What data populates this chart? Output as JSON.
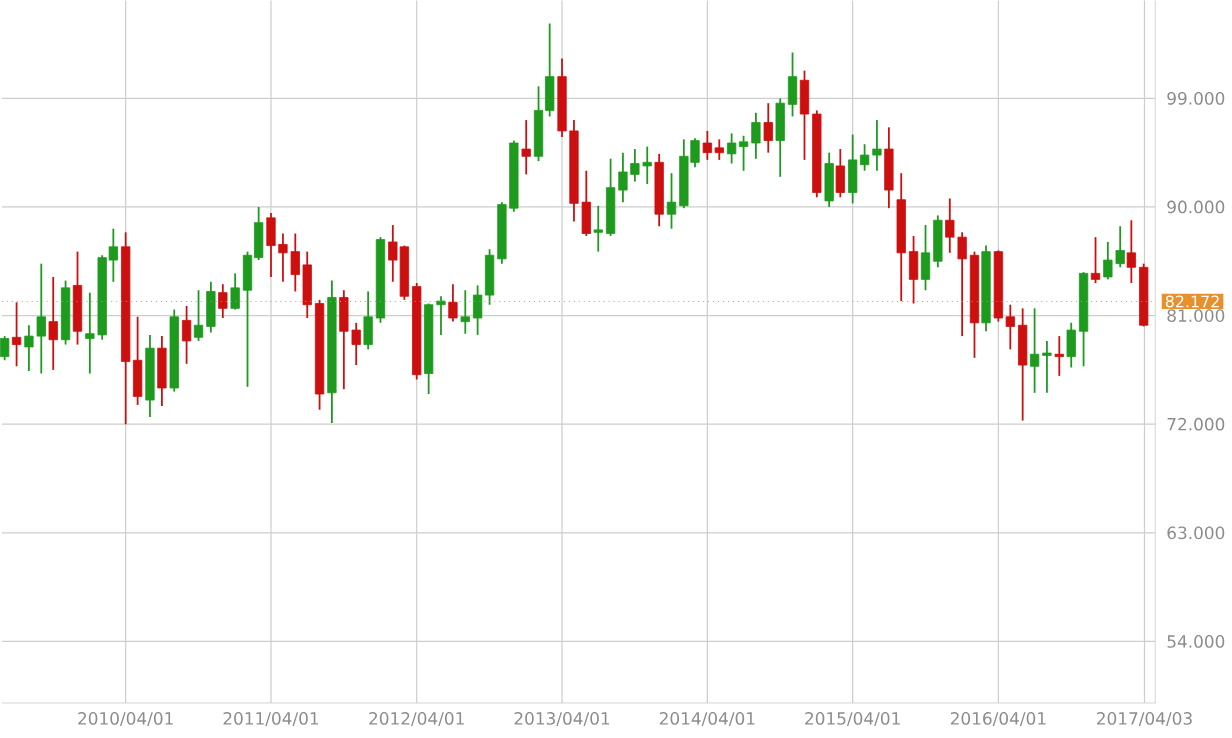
{
  "chart_data": {
    "type": "candlestick",
    "x": [
      "2009-06",
      "2009-07",
      "2009-08",
      "2009-09",
      "2009-10",
      "2009-11",
      "2009-12",
      "2010-01",
      "2010-02",
      "2010-03",
      "2010-04",
      "2010-05",
      "2010-06",
      "2010-07",
      "2010-08",
      "2010-09",
      "2010-10",
      "2010-11",
      "2010-12",
      "2011-01",
      "2011-02",
      "2011-03",
      "2011-04",
      "2011-05",
      "2011-06",
      "2011-07",
      "2011-08",
      "2011-09",
      "2011-10",
      "2011-11",
      "2011-12",
      "2012-01",
      "2012-02",
      "2012-03",
      "2012-04",
      "2012-05",
      "2012-06",
      "2012-07",
      "2012-08",
      "2012-09",
      "2012-10",
      "2012-11",
      "2012-12",
      "2013-01",
      "2013-02",
      "2013-03",
      "2013-04",
      "2013-05",
      "2013-06",
      "2013-07",
      "2013-08",
      "2013-09",
      "2013-10",
      "2013-11",
      "2013-12",
      "2014-01",
      "2014-02",
      "2014-03",
      "2014-04",
      "2014-05",
      "2014-06",
      "2014-07",
      "2014-08",
      "2014-09",
      "2014-10",
      "2014-11",
      "2014-12",
      "2015-01",
      "2015-02",
      "2015-03",
      "2015-04",
      "2015-05",
      "2015-06",
      "2015-07",
      "2015-08",
      "2015-09",
      "2015-10",
      "2015-11",
      "2015-12",
      "2016-01",
      "2016-02",
      "2016-03",
      "2016-04",
      "2016-05",
      "2016-06",
      "2016-07",
      "2016-08",
      "2016-09",
      "2016-10",
      "2016-11",
      "2016-12",
      "2017-01",
      "2017-02",
      "2017-03",
      "2017-04"
    ],
    "ohlc": [
      [
        77.6,
        79.3,
        77.3,
        79.1
      ],
      [
        79.2,
        82.1,
        76.8,
        78.6
      ],
      [
        78.4,
        80.2,
        76.4,
        79.3
      ],
      [
        79.3,
        85.3,
        76.2,
        80.9
      ],
      [
        80.5,
        84.2,
        76.5,
        79.0
      ],
      [
        79.0,
        83.9,
        78.6,
        83.3
      ],
      [
        83.5,
        86.3,
        78.6,
        79.7
      ],
      [
        79.1,
        82.9,
        76.2,
        79.5
      ],
      [
        79.4,
        86.0,
        79.0,
        85.8
      ],
      [
        85.6,
        88.2,
        83.8,
        86.7
      ],
      [
        86.7,
        87.9,
        72.0,
        77.2
      ],
      [
        77.3,
        80.9,
        73.6,
        74.3
      ],
      [
        74.0,
        79.4,
        72.6,
        78.3
      ],
      [
        78.3,
        79.3,
        73.5,
        75.0
      ],
      [
        75.0,
        81.5,
        74.7,
        80.9
      ],
      [
        80.6,
        81.8,
        77.0,
        78.9
      ],
      [
        79.2,
        83.1,
        78.9,
        80.2
      ],
      [
        80.1,
        83.8,
        79.6,
        83.0
      ],
      [
        82.9,
        83.6,
        80.8,
        81.6
      ],
      [
        81.6,
        84.5,
        81.5,
        83.3
      ],
      [
        83.1,
        86.3,
        75.1,
        86.0
      ],
      [
        85.8,
        90.0,
        85.6,
        88.7
      ],
      [
        89.1,
        89.5,
        84.2,
        86.8
      ],
      [
        86.9,
        87.8,
        83.8,
        86.2
      ],
      [
        86.3,
        87.8,
        83.0,
        84.4
      ],
      [
        85.2,
        86.3,
        80.8,
        81.9
      ],
      [
        82.0,
        82.3,
        73.2,
        74.5
      ],
      [
        74.6,
        83.9,
        72.1,
        82.5
      ],
      [
        82.5,
        83.1,
        74.9,
        79.7
      ],
      [
        79.8,
        80.4,
        76.9,
        78.6
      ],
      [
        78.6,
        83.0,
        78.2,
        80.9
      ],
      [
        80.8,
        87.5,
        80.4,
        87.3
      ],
      [
        87.1,
        88.5,
        83.8,
        85.6
      ],
      [
        86.7,
        86.8,
        82.3,
        82.6
      ],
      [
        83.4,
        83.7,
        75.7,
        76.1
      ],
      [
        76.2,
        82.0,
        74.5,
        81.9
      ],
      [
        81.9,
        82.6,
        79.4,
        82.2
      ],
      [
        82.1,
        83.6,
        80.5,
        80.8
      ],
      [
        80.5,
        83.1,
        79.5,
        80.9
      ],
      [
        80.8,
        83.5,
        79.4,
        82.7
      ],
      [
        82.7,
        86.5,
        81.9,
        86.0
      ],
      [
        85.7,
        90.4,
        85.3,
        90.2
      ],
      [
        89.9,
        95.5,
        89.6,
        95.3
      ],
      [
        94.8,
        97.2,
        92.7,
        94.2
      ],
      [
        94.2,
        100.0,
        93.8,
        98.0
      ],
      [
        98.0,
        105.2,
        97.5,
        100.8
      ],
      [
        100.8,
        102.3,
        95.8,
        96.3
      ],
      [
        96.3,
        97.2,
        88.8,
        90.3
      ],
      [
        90.4,
        93.0,
        87.6,
        87.8
      ],
      [
        87.9,
        90.1,
        86.3,
        88.1
      ],
      [
        87.8,
        94.0,
        87.6,
        91.6
      ],
      [
        91.4,
        94.5,
        90.4,
        92.9
      ],
      [
        92.7,
        94.8,
        92.1,
        93.6
      ],
      [
        93.4,
        95.0,
        91.9,
        93.7
      ],
      [
        93.7,
        94.4,
        88.4,
        89.4
      ],
      [
        89.4,
        92.8,
        88.2,
        90.4
      ],
      [
        90.1,
        95.6,
        89.9,
        94.2
      ],
      [
        93.7,
        95.7,
        93.3,
        95.5
      ],
      [
        95.3,
        96.3,
        93.9,
        94.5
      ],
      [
        94.9,
        95.6,
        93.9,
        94.5
      ],
      [
        94.4,
        96.1,
        93.6,
        95.3
      ],
      [
        95.0,
        95.9,
        93.0,
        95.4
      ],
      [
        95.3,
        97.8,
        94.0,
        97.0
      ],
      [
        97.0,
        98.6,
        94.5,
        95.5
      ],
      [
        95.5,
        99.0,
        92.5,
        98.6
      ],
      [
        98.5,
        102.8,
        97.5,
        100.8
      ],
      [
        100.5,
        101.3,
        93.9,
        97.7
      ],
      [
        97.7,
        98.0,
        90.8,
        91.2
      ],
      [
        90.5,
        94.5,
        90.0,
        93.6
      ],
      [
        93.4,
        94.8,
        90.8,
        91.2
      ],
      [
        91.2,
        96.0,
        90.3,
        93.9
      ],
      [
        93.5,
        95.2,
        93.0,
        94.3
      ],
      [
        94.3,
        97.2,
        93.0,
        94.8
      ],
      [
        94.8,
        96.6,
        89.9,
        91.4
      ],
      [
        90.6,
        92.8,
        82.2,
        86.2
      ],
      [
        86.3,
        87.6,
        82.0,
        84.0
      ],
      [
        84.0,
        88.5,
        83.1,
        86.2
      ],
      [
        85.5,
        89.3,
        85.0,
        88.9
      ],
      [
        88.9,
        90.7,
        86.2,
        87.5
      ],
      [
        87.5,
        87.9,
        79.3,
        85.7
      ],
      [
        86.0,
        86.3,
        77.5,
        80.4
      ],
      [
        80.4,
        86.8,
        79.7,
        86.3
      ],
      [
        86.3,
        86.4,
        80.5,
        80.8
      ],
      [
        80.9,
        81.9,
        78.2,
        80.1
      ],
      [
        80.2,
        81.6,
        72.3,
        76.9
      ],
      [
        76.8,
        81.6,
        74.6,
        77.8
      ],
      [
        77.7,
        78.9,
        74.6,
        77.9
      ],
      [
        77.8,
        79.3,
        76.0,
        77.6
      ],
      [
        77.6,
        80.4,
        76.7,
        79.8
      ],
      [
        79.7,
        84.6,
        76.8,
        84.5
      ],
      [
        84.5,
        87.5,
        83.7,
        84.0
      ],
      [
        84.2,
        87.1,
        84.0,
        85.6
      ],
      [
        85.3,
        88.4,
        85.0,
        86.4
      ],
      [
        86.2,
        88.9,
        83.7,
        85.0
      ],
      [
        85.0,
        85.3,
        80.1,
        80.2
      ]
    ],
    "xlim": [
      "2009-05-25",
      "2017-04-30"
    ],
    "xticks": [
      {
        "value": "2010-04-01",
        "label": "2010/04/01"
      },
      {
        "value": "2011-04-01",
        "label": "2011/04/01"
      },
      {
        "value": "2012-04-01",
        "label": "2012/04/01"
      },
      {
        "value": "2013-04-01",
        "label": "2013/04/01"
      },
      {
        "value": "2014-04-01",
        "label": "2014/04/01"
      },
      {
        "value": "2015-04-01",
        "label": "2015/04/01"
      },
      {
        "value": "2016-04-01",
        "label": "2016/04/01"
      },
      {
        "value": "2017-04-03",
        "label": "2017/04/03"
      }
    ],
    "ylim": [
      48.9,
      107.1
    ],
    "yticks": [
      {
        "value": 54,
        "label": "54.000"
      },
      {
        "value": 63,
        "label": "63.000"
      },
      {
        "value": 72,
        "label": "72.000"
      },
      {
        "value": 81,
        "label": "81.000"
      },
      {
        "value": 90,
        "label": "90.000"
      },
      {
        "value": 99,
        "label": "99.000"
      }
    ],
    "grid": true,
    "ref_lines": [
      {
        "axis": "y",
        "value": 82.172,
        "label": "82.172",
        "color": "#e8912c"
      }
    ]
  }
}
